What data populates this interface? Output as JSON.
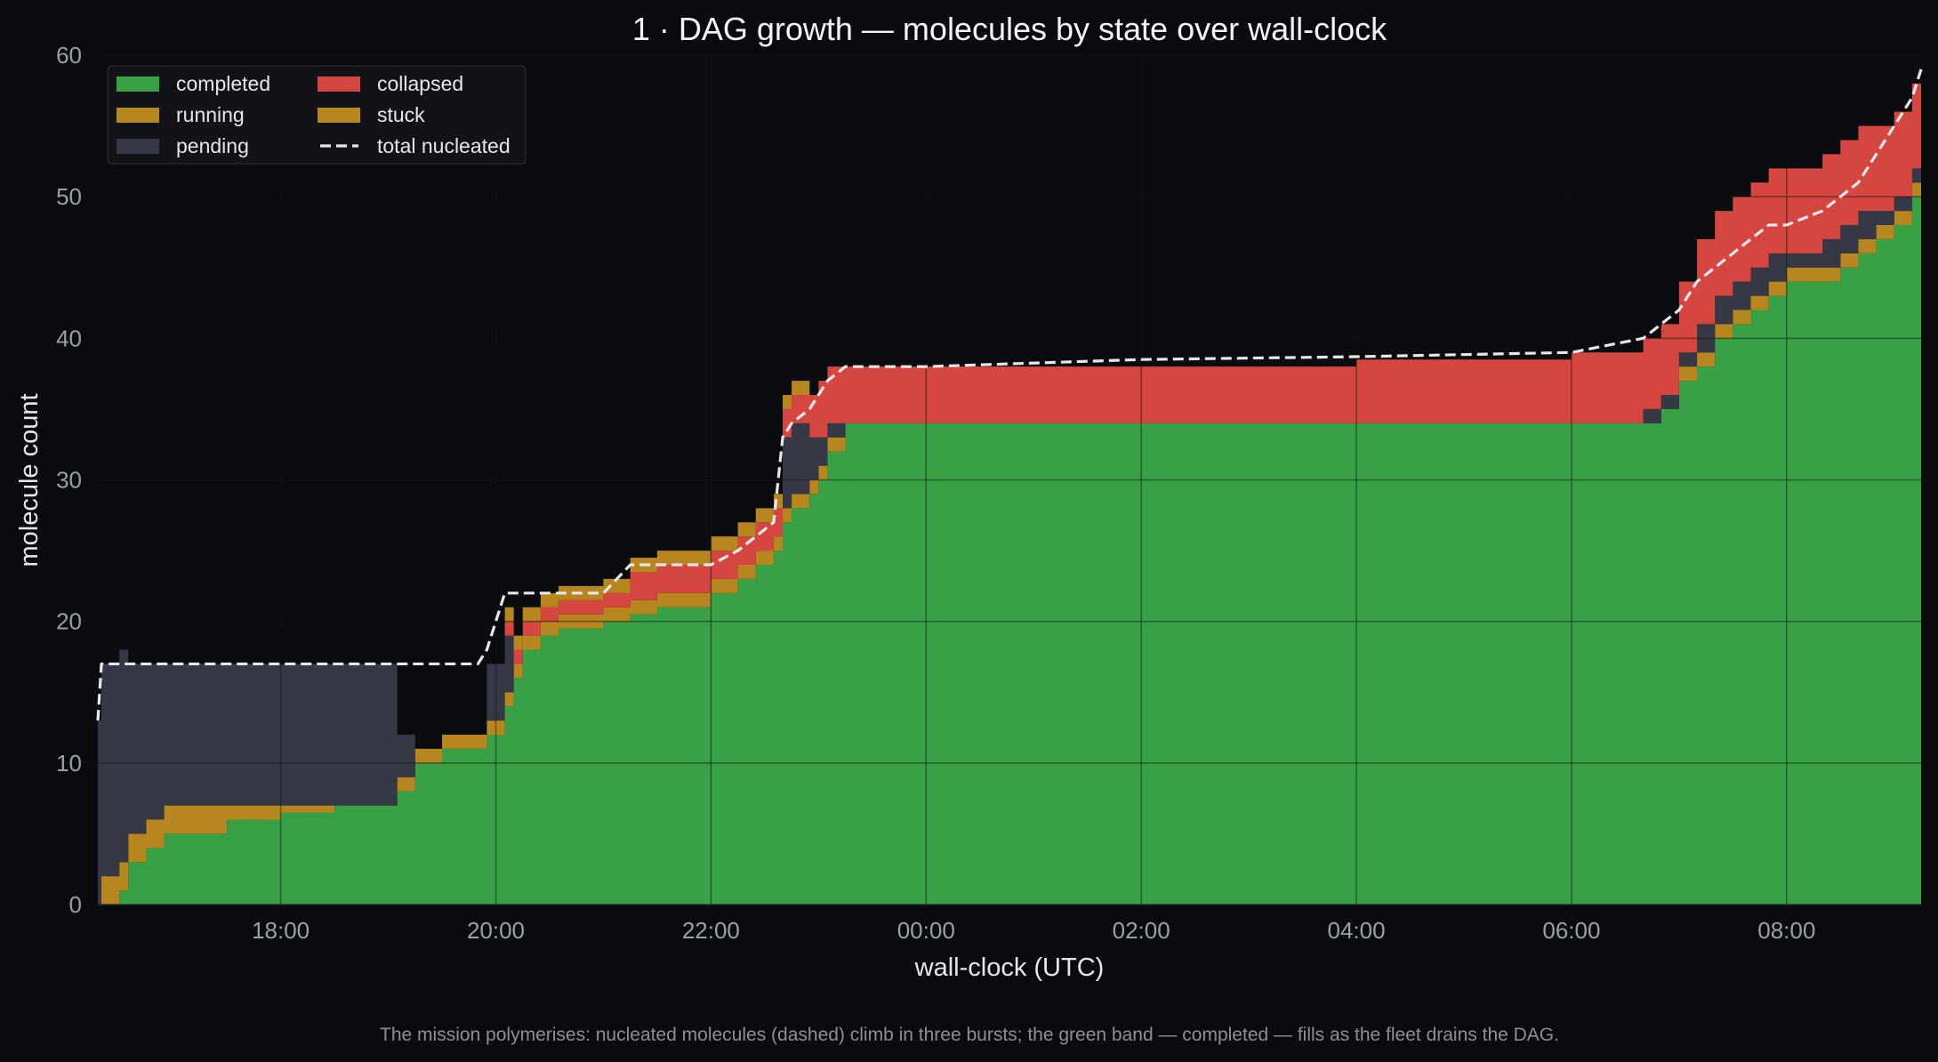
{
  "chart_data": {
    "type": "area",
    "title": "1 · DAG growth — molecules by state over wall-clock",
    "xlabel": "wall-clock (UTC)",
    "ylabel": "molecule count",
    "caption": "The mission polymerises: nucleated molecules (dashed) climb in three bursts; the green band — completed — fills as the fleet drains the DAG.",
    "x_ticks": [
      "18:00",
      "20:00",
      "22:00",
      "00:00",
      "02:00",
      "04:00",
      "06:00",
      "08:00"
    ],
    "y_ticks": [
      "0",
      "10",
      "20",
      "30",
      "40",
      "50",
      "60"
    ],
    "xlim": [
      "16:18",
      "09:15"
    ],
    "ylim": [
      0,
      60
    ],
    "grid": true,
    "legend_position": "top-left",
    "legend": [
      {
        "key": "completed",
        "label": "completed",
        "color": "#38a146",
        "style": "fill"
      },
      {
        "key": "running",
        "label": "running",
        "color": "#b8861e",
        "style": "fill"
      },
      {
        "key": "pending",
        "label": "pending",
        "color": "#363945",
        "style": "fill"
      },
      {
        "key": "collapsed",
        "label": "collapsed",
        "color": "#d4463f",
        "style": "fill"
      },
      {
        "key": "stuck",
        "label": "stuck",
        "color": "#b8861e",
        "style": "fill"
      },
      {
        "key": "total",
        "label": "total nucleated",
        "color": "#e5e7eb",
        "style": "dashed"
      }
    ],
    "x": [
      "16:18",
      "16:20",
      "16:30",
      "16:35",
      "16:45",
      "16:55",
      "17:05",
      "17:30",
      "18:00",
      "18:30",
      "19:00",
      "19:05",
      "19:15",
      "19:30",
      "19:45",
      "19:50",
      "19:55",
      "20:05",
      "20:10",
      "20:15",
      "20:25",
      "20:35",
      "21:00",
      "21:15",
      "21:30",
      "21:40",
      "22:00",
      "22:15",
      "22:25",
      "22:35",
      "22:40",
      "22:45",
      "22:55",
      "23:00",
      "23:05",
      "23:15",
      "23:25",
      "00:00",
      "02:00",
      "04:00",
      "06:00",
      "06:40",
      "06:50",
      "07:00",
      "07:10",
      "07:20",
      "07:30",
      "07:40",
      "07:50",
      "08:00",
      "08:20",
      "08:30",
      "08:40",
      "08:50",
      "09:00",
      "09:10",
      "09:15"
    ],
    "series": [
      {
        "name": "completed",
        "values": [
          0,
          0,
          1,
          3,
          4,
          5,
          5,
          6,
          6.5,
          7,
          7,
          8,
          10,
          11,
          11,
          11,
          12,
          14,
          16,
          18,
          19,
          19.5,
          20,
          20.5,
          21,
          21,
          22,
          23,
          24,
          25,
          27,
          28,
          29,
          30,
          32,
          34,
          34,
          34,
          34,
          34,
          34,
          34,
          35,
          37,
          38,
          40,
          41,
          42,
          43,
          44,
          44,
          45,
          46,
          47,
          48,
          50,
          52
        ]
      },
      {
        "name": "running",
        "values": [
          0,
          2,
          2,
          2,
          2,
          2,
          2,
          1,
          0.5,
          0,
          0,
          1,
          1,
          1,
          1,
          1,
          1,
          1,
          1,
          1,
          1,
          1,
          1,
          1,
          1,
          1,
          1,
          1,
          1,
          1,
          1,
          1,
          1,
          1,
          1,
          0,
          0,
          0,
          0,
          0,
          0,
          0,
          0,
          1,
          1,
          1,
          1,
          1,
          1,
          1,
          1,
          1,
          1,
          1,
          1,
          1,
          1
        ]
      },
      {
        "name": "pending",
        "values": [
          13,
          15,
          15,
          12,
          11,
          10,
          10,
          10,
          10,
          10,
          10,
          3,
          0,
          0,
          0,
          0,
          4,
          4,
          0,
          0,
          0,
          0,
          0,
          0,
          0,
          0,
          0,
          0,
          0,
          0,
          5,
          5,
          3,
          2,
          1,
          0,
          0,
          0,
          0,
          0,
          0,
          1,
          1,
          1,
          2,
          2,
          2,
          2,
          2,
          1,
          2,
          2,
          2,
          1,
          1,
          1,
          1
        ]
      },
      {
        "name": "collapsed",
        "values": [
          0,
          0,
          0,
          0,
          0,
          0,
          0,
          0,
          0,
          0,
          0,
          0,
          0,
          0,
          0,
          0,
          0,
          1,
          1,
          1,
          1,
          1,
          1,
          2,
          2,
          2,
          2,
          2,
          2,
          2,
          2,
          2,
          3,
          4,
          4,
          4,
          4,
          4,
          4,
          4.5,
          5,
          5,
          5,
          5,
          6,
          6,
          6,
          6,
          6,
          6,
          6,
          6,
          6,
          6,
          6,
          6,
          6
        ]
      },
      {
        "name": "stuck",
        "values": [
          0,
          0,
          0,
          0,
          0,
          0,
          0,
          0,
          0,
          0,
          0,
          0,
          0,
          0,
          0,
          0,
          0,
          1,
          1,
          1,
          1,
          1,
          1,
          1,
          1,
          1,
          1,
          1,
          1,
          1,
          1,
          1,
          0,
          0,
          0,
          0,
          0,
          0,
          0,
          0,
          0,
          0,
          0,
          0,
          0,
          0,
          0,
          0,
          0,
          0,
          0,
          0,
          0,
          0,
          0,
          0,
          0
        ]
      },
      {
        "name": "total nucleated",
        "values": [
          13,
          17,
          17,
          17,
          17,
          17,
          17,
          17,
          17,
          17,
          17,
          17,
          17,
          17,
          17,
          17,
          18,
          22,
          22,
          22,
          22,
          22,
          22,
          24,
          24,
          24,
          24,
          25,
          26,
          27,
          33,
          34,
          35,
          36,
          37,
          38,
          38,
          38,
          38.5,
          38.7,
          39,
          40,
          41,
          42,
          44,
          45,
          46,
          47,
          48,
          48,
          49,
          50,
          51,
          53,
          55,
          57,
          59
        ]
      }
    ]
  }
}
